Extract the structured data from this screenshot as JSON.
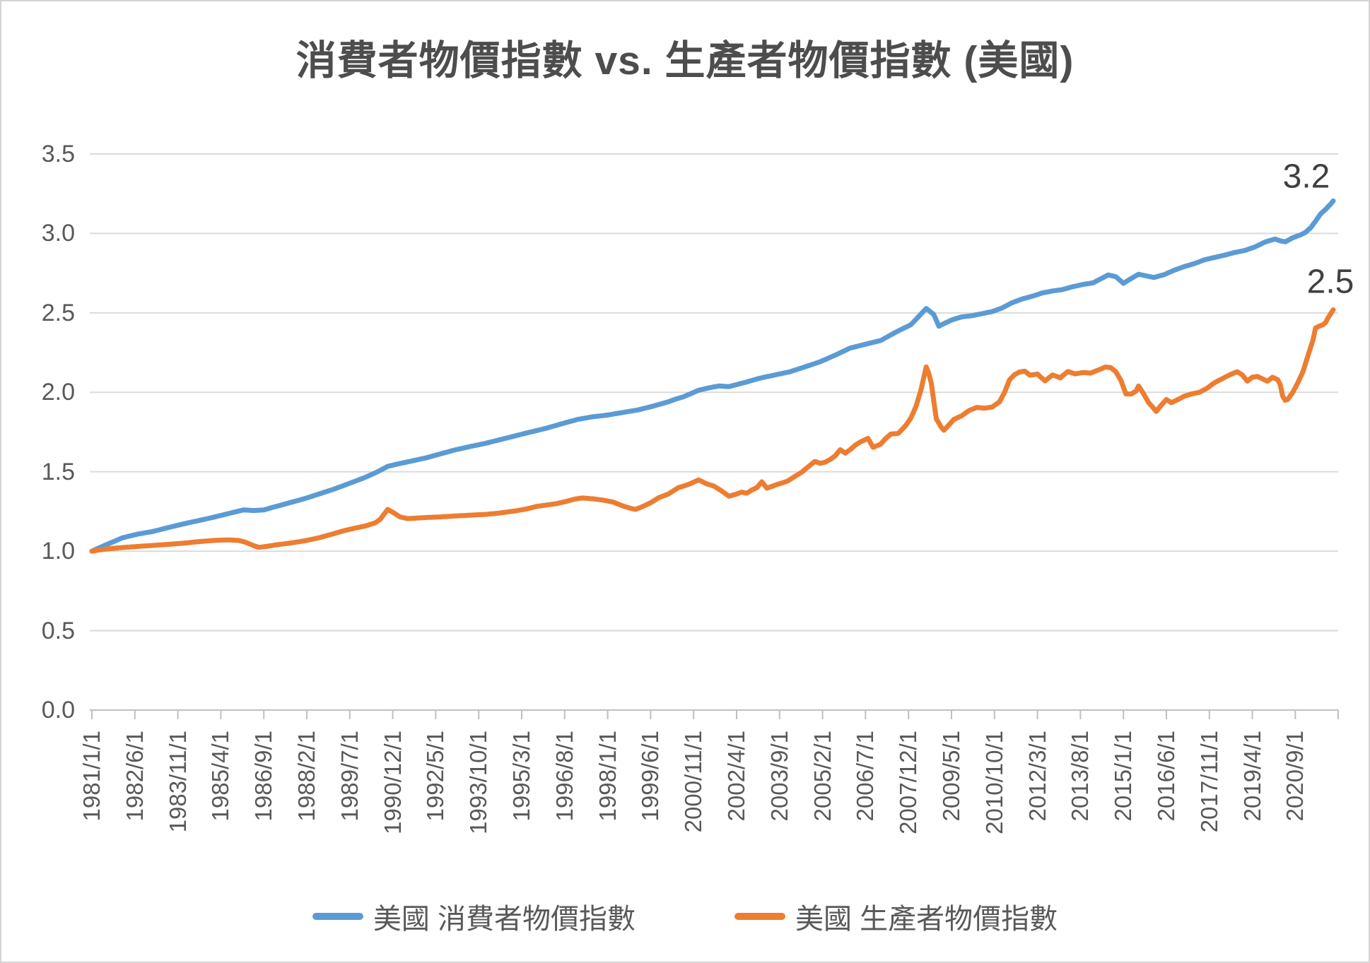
{
  "title": "消費者物價指數 vs. 生產者物價指數 (美國)",
  "colors": {
    "cpi_line": "#5B9BD5",
    "ppi_line": "#ED7D31",
    "gridline": "#DBDBDB",
    "axis_line": "#BFBFBF",
    "axis_text": "#595959",
    "title_text": "#4D4D4D",
    "data_label_text": "#404040"
  },
  "legend": {
    "position": "bottom",
    "items": [
      {
        "label": "美國 消費者物價指數",
        "color": "#5B9BD5"
      },
      {
        "label": "美國 生產者物價指數",
        "color": "#ED7D31"
      }
    ]
  },
  "chart_data": {
    "type": "line",
    "title": "消費者物價指數 vs. 生產者物價指數 (美國)",
    "xlabel": "",
    "ylabel": "",
    "grid": true,
    "x_axis": {
      "start": "1981/1/1",
      "end": "2021/12/1",
      "frequency": "monthly",
      "months_per_tick": 17,
      "tick_labels": [
        "1981/1/1",
        "1982/6/1",
        "1983/11/1",
        "1985/4/1",
        "1986/9/1",
        "1988/2/1",
        "1989/7/1",
        "1990/12/1",
        "1992/5/1",
        "1993/10/1",
        "1995/3/1",
        "1996/8/1",
        "1998/1/1",
        "1999/6/1",
        "2000/11/1",
        "2002/4/1",
        "2003/9/1",
        "2005/2/1",
        "2006/7/1",
        "2007/12/1",
        "2009/5/1",
        "2010/10/1",
        "2012/3/1",
        "2013/8/1",
        "2015/1/1",
        "2016/6/1",
        "2017/11/1",
        "2019/4/1",
        "2020/9/1"
      ]
    },
    "y_axis": {
      "min": 0.0,
      "max": 3.5,
      "step": 0.5,
      "tick_labels": [
        "0.0",
        "0.5",
        "1.0",
        "1.5",
        "2.0",
        "2.5",
        "3.0",
        "3.5"
      ]
    },
    "series": [
      {
        "name": "美國 消費者物價指數",
        "color": "#5B9BD5",
        "end_label": "3.2",
        "end_month": 491,
        "anchors": [
          [
            0,
            1.0
          ],
          [
            3,
            1.022
          ],
          [
            6,
            1.043
          ],
          [
            9,
            1.063
          ],
          [
            12,
            1.084
          ],
          [
            18,
            1.107
          ],
          [
            24,
            1.124
          ],
          [
            30,
            1.148
          ],
          [
            36,
            1.171
          ],
          [
            42,
            1.192
          ],
          [
            48,
            1.213
          ],
          [
            54,
            1.237
          ],
          [
            60,
            1.26
          ],
          [
            64,
            1.256
          ],
          [
            68,
            1.26
          ],
          [
            72,
            1.278
          ],
          [
            78,
            1.304
          ],
          [
            84,
            1.33
          ],
          [
            90,
            1.361
          ],
          [
            96,
            1.392
          ],
          [
            102,
            1.428
          ],
          [
            108,
            1.464
          ],
          [
            113,
            1.5
          ],
          [
            117,
            1.534
          ],
          [
            121,
            1.549
          ],
          [
            126,
            1.566
          ],
          [
            132,
            1.587
          ],
          [
            138,
            1.613
          ],
          [
            144,
            1.639
          ],
          [
            150,
            1.66
          ],
          [
            156,
            1.68
          ],
          [
            162,
            1.704
          ],
          [
            168,
            1.728
          ],
          [
            174,
            1.752
          ],
          [
            180,
            1.775
          ],
          [
            186,
            1.803
          ],
          [
            192,
            1.829
          ],
          [
            198,
            1.846
          ],
          [
            204,
            1.857
          ],
          [
            210,
            1.873
          ],
          [
            216,
            1.889
          ],
          [
            222,
            1.913
          ],
          [
            228,
            1.94
          ],
          [
            231,
            1.958
          ],
          [
            234,
            1.972
          ],
          [
            240,
            2.013
          ],
          [
            244,
            2.028
          ],
          [
            248,
            2.04
          ],
          [
            252,
            2.036
          ],
          [
            258,
            2.061
          ],
          [
            264,
            2.088
          ],
          [
            270,
            2.109
          ],
          [
            276,
            2.129
          ],
          [
            282,
            2.16
          ],
          [
            288,
            2.192
          ],
          [
            294,
            2.234
          ],
          [
            300,
            2.279
          ],
          [
            306,
            2.303
          ],
          [
            312,
            2.326
          ],
          [
            318,
            2.379
          ],
          [
            324,
            2.426
          ],
          [
            327,
            2.477
          ],
          [
            330,
            2.528
          ],
          [
            333,
            2.49
          ],
          [
            335,
            2.416
          ],
          [
            337,
            2.432
          ],
          [
            340,
            2.455
          ],
          [
            344,
            2.475
          ],
          [
            348,
            2.482
          ],
          [
            352,
            2.495
          ],
          [
            356,
            2.508
          ],
          [
            360,
            2.531
          ],
          [
            364,
            2.564
          ],
          [
            368,
            2.588
          ],
          [
            372,
            2.605
          ],
          [
            376,
            2.626
          ],
          [
            380,
            2.638
          ],
          [
            384,
            2.647
          ],
          [
            388,
            2.665
          ],
          [
            392,
            2.679
          ],
          [
            396,
            2.689
          ],
          [
            399,
            2.714
          ],
          [
            402,
            2.739
          ],
          [
            405,
            2.728
          ],
          [
            408,
            2.686
          ],
          [
            411,
            2.716
          ],
          [
            414,
            2.743
          ],
          [
            417,
            2.733
          ],
          [
            420,
            2.723
          ],
          [
            424,
            2.74
          ],
          [
            428,
            2.768
          ],
          [
            432,
            2.791
          ],
          [
            436,
            2.81
          ],
          [
            440,
            2.834
          ],
          [
            444,
            2.849
          ],
          [
            448,
            2.863
          ],
          [
            452,
            2.88
          ],
          [
            456,
            2.893
          ],
          [
            460,
            2.915
          ],
          [
            464,
            2.946
          ],
          [
            468,
            2.965
          ],
          [
            470,
            2.954
          ],
          [
            472,
            2.947
          ],
          [
            475,
            2.973
          ],
          [
            478,
            2.991
          ],
          [
            480,
            3.007
          ],
          [
            482,
            3.035
          ],
          [
            484,
            3.077
          ],
          [
            486,
            3.123
          ],
          [
            488,
            3.152
          ],
          [
            490,
            3.185
          ],
          [
            491,
            3.205
          ]
        ]
      },
      {
        "name": "美國 生產者物價指數",
        "color": "#ED7D31",
        "end_label": "2.5",
        "end_month": 491,
        "anchors": [
          [
            0,
            1.0
          ],
          [
            3,
            1.008
          ],
          [
            6,
            1.014
          ],
          [
            9,
            1.019
          ],
          [
            12,
            1.023
          ],
          [
            18,
            1.03
          ],
          [
            24,
            1.036
          ],
          [
            30,
            1.043
          ],
          [
            36,
            1.05
          ],
          [
            42,
            1.06
          ],
          [
            48,
            1.068
          ],
          [
            54,
            1.071
          ],
          [
            58,
            1.068
          ],
          [
            61,
            1.055
          ],
          [
            64,
            1.035
          ],
          [
            66,
            1.024
          ],
          [
            69,
            1.03
          ],
          [
            73,
            1.04
          ],
          [
            78,
            1.05
          ],
          [
            84,
            1.065
          ],
          [
            90,
            1.085
          ],
          [
            96,
            1.112
          ],
          [
            100,
            1.13
          ],
          [
            104,
            1.145
          ],
          [
            108,
            1.158
          ],
          [
            112,
            1.178
          ],
          [
            114,
            1.2
          ],
          [
            117,
            1.263
          ],
          [
            119,
            1.245
          ],
          [
            122,
            1.215
          ],
          [
            125,
            1.205
          ],
          [
            128,
            1.208
          ],
          [
            132,
            1.212
          ],
          [
            138,
            1.216
          ],
          [
            144,
            1.222
          ],
          [
            150,
            1.227
          ],
          [
            156,
            1.232
          ],
          [
            160,
            1.238
          ],
          [
            164,
            1.246
          ],
          [
            168,
            1.255
          ],
          [
            172,
            1.266
          ],
          [
            176,
            1.282
          ],
          [
            180,
            1.291
          ],
          [
            184,
            1.3
          ],
          [
            188,
            1.315
          ],
          [
            191,
            1.328
          ],
          [
            194,
            1.335
          ],
          [
            198,
            1.33
          ],
          [
            202,
            1.322
          ],
          [
            206,
            1.31
          ],
          [
            210,
            1.285
          ],
          [
            213,
            1.27
          ],
          [
            215,
            1.263
          ],
          [
            218,
            1.282
          ],
          [
            221,
            1.305
          ],
          [
            224,
            1.335
          ],
          [
            228,
            1.36
          ],
          [
            232,
            1.4
          ],
          [
            236,
            1.42
          ],
          [
            240,
            1.449
          ],
          [
            243,
            1.425
          ],
          [
            246,
            1.41
          ],
          [
            249,
            1.38
          ],
          [
            252,
            1.346
          ],
          [
            255,
            1.36
          ],
          [
            257,
            1.372
          ],
          [
            259,
            1.365
          ],
          [
            261,
            1.385
          ],
          [
            263,
            1.4
          ],
          [
            265,
            1.437
          ],
          [
            267,
            1.397
          ],
          [
            269,
            1.408
          ],
          [
            271,
            1.42
          ],
          [
            273,
            1.43
          ],
          [
            275,
            1.44
          ],
          [
            278,
            1.47
          ],
          [
            281,
            1.5
          ],
          [
            284,
            1.54
          ],
          [
            286,
            1.565
          ],
          [
            288,
            1.553
          ],
          [
            290,
            1.56
          ],
          [
            292,
            1.577
          ],
          [
            294,
            1.6
          ],
          [
            296,
            1.639
          ],
          [
            298,
            1.617
          ],
          [
            300,
            1.64
          ],
          [
            302,
            1.668
          ],
          [
            304,
            1.688
          ],
          [
            307,
            1.71
          ],
          [
            309,
            1.654
          ],
          [
            312,
            1.674
          ],
          [
            314,
            1.71
          ],
          [
            316,
            1.737
          ],
          [
            319,
            1.742
          ],
          [
            322,
            1.793
          ],
          [
            324,
            1.84
          ],
          [
            326,
            1.913
          ],
          [
            328,
            2.02
          ],
          [
            330,
            2.16
          ],
          [
            331,
            2.12
          ],
          [
            332,
            2.058
          ],
          [
            334,
            1.833
          ],
          [
            336,
            1.779
          ],
          [
            337,
            1.761
          ],
          [
            339,
            1.795
          ],
          [
            341,
            1.83
          ],
          [
            344,
            1.852
          ],
          [
            347,
            1.886
          ],
          [
            350,
            1.905
          ],
          [
            353,
            1.9
          ],
          [
            356,
            1.907
          ],
          [
            359,
            1.94
          ],
          [
            361,
            2.0
          ],
          [
            363,
            2.08
          ],
          [
            365,
            2.112
          ],
          [
            367,
            2.128
          ],
          [
            369,
            2.133
          ],
          [
            371,
            2.108
          ],
          [
            374,
            2.115
          ],
          [
            377,
            2.072
          ],
          [
            380,
            2.11
          ],
          [
            383,
            2.091
          ],
          [
            386,
            2.131
          ],
          [
            389,
            2.116
          ],
          [
            392,
            2.125
          ],
          [
            395,
            2.121
          ],
          [
            398,
            2.14
          ],
          [
            401,
            2.16
          ],
          [
            403,
            2.155
          ],
          [
            405,
            2.13
          ],
          [
            407,
            2.075
          ],
          [
            409,
            1.99
          ],
          [
            411,
            1.989
          ],
          [
            413,
            2.007
          ],
          [
            414,
            2.04
          ],
          [
            416,
            1.99
          ],
          [
            418,
            1.935
          ],
          [
            421,
            1.88
          ],
          [
            423,
            1.92
          ],
          [
            425,
            1.955
          ],
          [
            427,
            1.935
          ],
          [
            429,
            1.95
          ],
          [
            432,
            1.975
          ],
          [
            435,
            1.99
          ],
          [
            438,
            2.0
          ],
          [
            441,
            2.025
          ],
          [
            444,
            2.06
          ],
          [
            447,
            2.085
          ],
          [
            450,
            2.11
          ],
          [
            453,
            2.13
          ],
          [
            455,
            2.11
          ],
          [
            457,
            2.07
          ],
          [
            459,
            2.095
          ],
          [
            461,
            2.1
          ],
          [
            463,
            2.085
          ],
          [
            465,
            2.07
          ],
          [
            467,
            2.095
          ],
          [
            469,
            2.08
          ],
          [
            470,
            2.05
          ],
          [
            471,
            1.975
          ],
          [
            472,
            1.95
          ],
          [
            473,
            1.955
          ],
          [
            475,
            2.0
          ],
          [
            477,
            2.06
          ],
          [
            479,
            2.13
          ],
          [
            481,
            2.23
          ],
          [
            483,
            2.33
          ],
          [
            484,
            2.405
          ],
          [
            486,
            2.42
          ],
          [
            487,
            2.426
          ],
          [
            488,
            2.44
          ],
          [
            489,
            2.47
          ],
          [
            491,
            2.52
          ]
        ]
      }
    ]
  }
}
